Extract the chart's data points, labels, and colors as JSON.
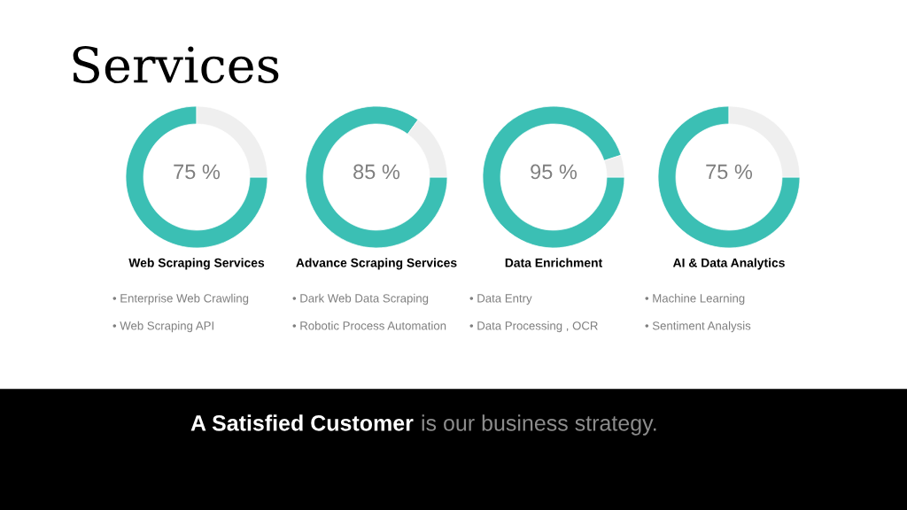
{
  "chart_data": [
    {
      "type": "donut",
      "title": "Services",
      "categories": [
        null,
        null
      ],
      "values": [
        75,
        25
      ],
      "colors": [
        "#3bbfb4",
        "#efefef"
      ],
      "value_labels": [
        "75 %",
        null
      ],
      "xlabel": "Web Scraping Services",
      "annotations": [
        "• Enterprise Web Crawling",
        "• Web Scraping API"
      ]
    },
    {
      "type": "donut",
      "categories": [
        null,
        null
      ],
      "values": [
        85,
        15
      ],
      "colors": [
        "#3bbfb4",
        "#efefef"
      ],
      "value_labels": [
        "85 %",
        null
      ],
      "xlabel": "Advance Scraping Services",
      "annotations": [
        "• Dark Web Data Scraping",
        "• Robotic Process Automation"
      ]
    },
    {
      "type": "donut",
      "categories": [
        null,
        null
      ],
      "values": [
        95,
        5
      ],
      "colors": [
        "#3bbfb4",
        "#efefef"
      ],
      "value_labels": [
        "95 %",
        null
      ],
      "xlabel": "Data Enrichment",
      "annotations": [
        "• Data Entry",
        "• Data Processing , OCR"
      ]
    },
    {
      "type": "donut",
      "categories": [
        null,
        null
      ],
      "values": [
        75,
        25
      ],
      "colors": [
        "#3bbfb4",
        "#efefef"
      ],
      "value_labels": [
        "75 %",
        null
      ],
      "xlabel": "AI & Data Analytics",
      "annotations": [
        "• Machine Learning",
        "• Sentiment Analysis",
        "A Satisfied Customer",
        "is our business strategy."
      ]
    }
  ]
}
